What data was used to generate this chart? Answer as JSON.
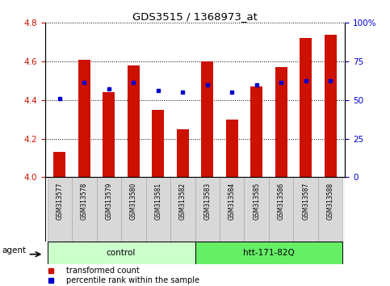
{
  "title": "GDS3515 / 1368973_at",
  "samples": [
    "GSM313577",
    "GSM313578",
    "GSM313579",
    "GSM313580",
    "GSM313581",
    "GSM313582",
    "GSM313583",
    "GSM313584",
    "GSM313585",
    "GSM313586",
    "GSM313587",
    "GSM313588"
  ],
  "red_values": [
    4.13,
    4.61,
    4.44,
    4.58,
    4.35,
    4.25,
    4.6,
    4.3,
    4.47,
    4.57,
    4.72,
    4.74
  ],
  "blue_values": [
    4.41,
    4.49,
    4.46,
    4.49,
    4.45,
    4.44,
    4.48,
    4.44,
    4.48,
    4.49,
    4.5,
    4.5
  ],
  "ylim_left": [
    4.0,
    4.8
  ],
  "ylim_right": [
    0,
    100
  ],
  "yticks_left": [
    4.0,
    4.2,
    4.4,
    4.6,
    4.8
  ],
  "yticks_right": [
    0,
    25,
    50,
    75,
    100
  ],
  "ytick_labels_right": [
    "0",
    "25",
    "50",
    "75",
    "100%"
  ],
  "group_labels": [
    "control",
    "htt-171-82Q"
  ],
  "agent_label": "agent",
  "legend_red": "transformed count",
  "legend_blue": "percentile rank within the sample",
  "bar_color": "#cc1100",
  "dot_color": "#0000cc",
  "group1_color": "#ccffcc",
  "group2_color": "#66ee66",
  "bar_width": 0.5,
  "background_color": "#ffffff",
  "plot_bg_color": "#ffffff",
  "tick_label_color_left": "#cc1100",
  "tick_label_color_right": "#0000cc",
  "sample_cell_color": "#d8d8d8",
  "sample_cell_border": "#aaaaaa"
}
